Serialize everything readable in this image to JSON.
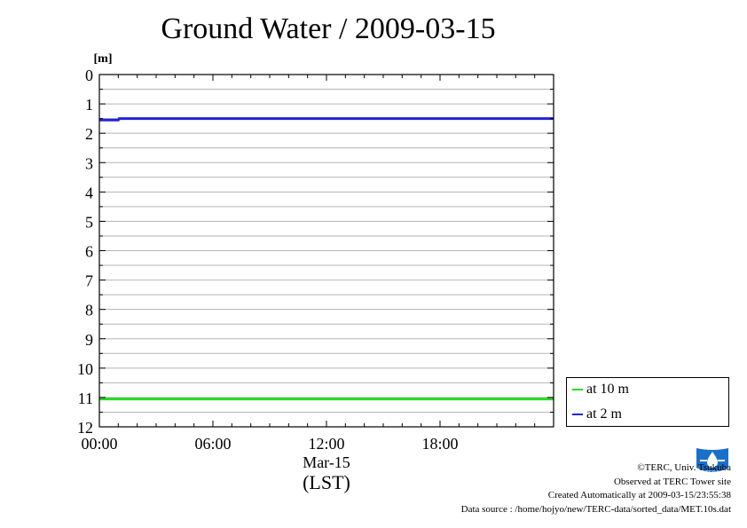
{
  "title": "Ground Water / 2009-03-15",
  "footer": {
    "copyright": "©TERC, Univ. Tsukuba",
    "observed": "Observed at TERC Tower site",
    "created": "Created Automatically at 2009-03-15/23:55:38",
    "source": "Data source : /home/hojyo/new/TERC-data/sorted_data/MET.10s.dat"
  },
  "logo": {
    "name": "terc-logo",
    "text": "TERC",
    "color": "#1a6fc9"
  },
  "chart_data": {
    "type": "line",
    "ylabel": "[m]",
    "ylim": [
      0,
      12
    ],
    "y_inverted": true,
    "yticks": [
      "0",
      "1",
      "2",
      "3",
      "4",
      "5",
      "6",
      "7",
      "8",
      "9",
      "10",
      "11",
      "12"
    ],
    "xticks": [
      {
        "label": "00:00",
        "hour": 0
      },
      {
        "label": "06:00",
        "hour": 6
      },
      {
        "label": "12:00",
        "hour": 12
      },
      {
        "label": "18:00",
        "hour": 18
      }
    ],
    "xlim_hours": [
      0,
      24
    ],
    "xlabel_date": "Mar-15",
    "xlabel_unit": "(LST)",
    "grid": true,
    "legend_position": "bottom-right outside",
    "series": [
      {
        "name": "at 10 m",
        "color": "#22dd22",
        "x": [
          0,
          24
        ],
        "y": [
          11.05,
          11.05
        ]
      },
      {
        "name": "at 2 m",
        "color": "#2222dd",
        "x": [
          0,
          1,
          1.05,
          24
        ],
        "y": [
          1.55,
          1.55,
          1.5,
          1.5
        ]
      }
    ]
  }
}
